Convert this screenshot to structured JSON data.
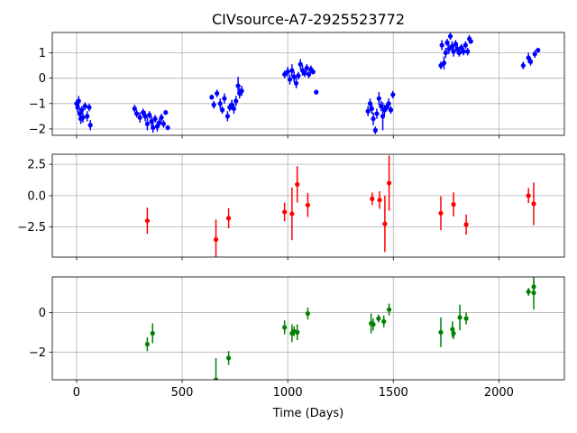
{
  "title": "CIVsource-A7-2925523772",
  "xlabel": "Time (Days)",
  "chart_data": [
    {
      "type": "scatter",
      "panel": "top",
      "color": "#0000ff",
      "title": "CIVsource-A7-2925523772",
      "xlim": [
        -115,
        2310
      ],
      "ylim": [
        -2.25,
        1.8
      ],
      "x_ticks": [
        0,
        500,
        1000,
        1500,
        2000
      ],
      "y_ticks": [
        -2,
        -1,
        0,
        1
      ],
      "grid": true,
      "points": [
        {
          "x": 0,
          "y": -1.0,
          "err": 0.15
        },
        {
          "x": 5,
          "y": -1.15,
          "err": 0.2
        },
        {
          "x": 10,
          "y": -0.9,
          "err": 0.2
        },
        {
          "x": 15,
          "y": -1.4,
          "err": 0.2
        },
        {
          "x": 20,
          "y": -1.6,
          "err": 0.2
        },
        {
          "x": 25,
          "y": -1.25,
          "err": 0.15
        },
        {
          "x": 30,
          "y": -1.55,
          "err": 0.2
        },
        {
          "x": 40,
          "y": -1.1,
          "err": 0.15
        },
        {
          "x": 50,
          "y": -1.5,
          "err": 0.2
        },
        {
          "x": 60,
          "y": -1.15,
          "err": 0.15
        },
        {
          "x": 65,
          "y": -1.85,
          "err": 0.2
        },
        {
          "x": 275,
          "y": -1.2,
          "err": 0.15
        },
        {
          "x": 285,
          "y": -1.4,
          "err": 0.15
        },
        {
          "x": 300,
          "y": -1.55,
          "err": 0.2
        },
        {
          "x": 315,
          "y": -1.35,
          "err": 0.15
        },
        {
          "x": 325,
          "y": -1.5,
          "err": 0.2
        },
        {
          "x": 335,
          "y": -1.8,
          "err": 0.25
        },
        {
          "x": 345,
          "y": -1.45,
          "err": 0.15
        },
        {
          "x": 355,
          "y": -1.7,
          "err": 0.2
        },
        {
          "x": 362,
          "y": -1.95,
          "err": 0.2
        },
        {
          "x": 372,
          "y": -1.6,
          "err": 0.15
        },
        {
          "x": 382,
          "y": -1.9,
          "err": 0.2
        },
        {
          "x": 392,
          "y": -1.75,
          "err": 0.15
        },
        {
          "x": 402,
          "y": -1.55,
          "err": 0.15
        },
        {
          "x": 412,
          "y": -1.8,
          "err": 0.15
        },
        {
          "x": 422,
          "y": -1.35,
          "err": 0.1
        },
        {
          "x": 432,
          "y": -1.95,
          "err": 0.1
        },
        {
          "x": 640,
          "y": -0.75,
          "err": 0.1
        },
        {
          "x": 650,
          "y": -1.05,
          "err": 0.15
        },
        {
          "x": 665,
          "y": -0.6,
          "err": 0.15
        },
        {
          "x": 680,
          "y": -1.0,
          "err": 0.2
        },
        {
          "x": 690,
          "y": -1.25,
          "err": 0.15
        },
        {
          "x": 700,
          "y": -0.8,
          "err": 0.2
        },
        {
          "x": 715,
          "y": -1.5,
          "err": 0.2
        },
        {
          "x": 725,
          "y": -1.15,
          "err": 0.15
        },
        {
          "x": 735,
          "y": -1.05,
          "err": 0.2
        },
        {
          "x": 745,
          "y": -1.2,
          "err": 0.2
        },
        {
          "x": 755,
          "y": -0.9,
          "err": 0.2
        },
        {
          "x": 765,
          "y": -0.3,
          "err": 0.35
        },
        {
          "x": 772,
          "y": -0.6,
          "err": 0.2
        },
        {
          "x": 782,
          "y": -0.5,
          "err": 0.2
        },
        {
          "x": 985,
          "y": 0.15,
          "err": 0.15
        },
        {
          "x": 1000,
          "y": 0.25,
          "err": 0.2
        },
        {
          "x": 1010,
          "y": -0.05,
          "err": 0.2
        },
        {
          "x": 1020,
          "y": 0.3,
          "err": 0.25
        },
        {
          "x": 1030,
          "y": 0.05,
          "err": 0.2
        },
        {
          "x": 1040,
          "y": -0.2,
          "err": 0.2
        },
        {
          "x": 1050,
          "y": 0.1,
          "err": 0.15
        },
        {
          "x": 1060,
          "y": 0.55,
          "err": 0.2
        },
        {
          "x": 1070,
          "y": 0.3,
          "err": 0.2
        },
        {
          "x": 1080,
          "y": 0.2,
          "err": 0.15
        },
        {
          "x": 1090,
          "y": 0.4,
          "err": 0.15
        },
        {
          "x": 1100,
          "y": 0.15,
          "err": 0.15
        },
        {
          "x": 1110,
          "y": 0.35,
          "err": 0.15
        },
        {
          "x": 1120,
          "y": 0.25,
          "err": 0.1
        },
        {
          "x": 1135,
          "y": -0.55,
          "err": 0.1
        },
        {
          "x": 1380,
          "y": -1.3,
          "err": 0.2
        },
        {
          "x": 1390,
          "y": -1.0,
          "err": 0.2
        },
        {
          "x": 1398,
          "y": -1.2,
          "err": 0.2
        },
        {
          "x": 1405,
          "y": -1.6,
          "err": 0.25
        },
        {
          "x": 1415,
          "y": -2.05,
          "err": 0.15
        },
        {
          "x": 1422,
          "y": -1.4,
          "err": 0.2
        },
        {
          "x": 1432,
          "y": -0.8,
          "err": 0.25
        },
        {
          "x": 1442,
          "y": -1.1,
          "err": 0.2
        },
        {
          "x": 1450,
          "y": -1.5,
          "err": 0.55
        },
        {
          "x": 1458,
          "y": -1.25,
          "err": 0.2
        },
        {
          "x": 1468,
          "y": -1.15,
          "err": 0.15
        },
        {
          "x": 1478,
          "y": -1.0,
          "err": 0.2
        },
        {
          "x": 1488,
          "y": -1.25,
          "err": 0.15
        },
        {
          "x": 1498,
          "y": -0.65,
          "err": 0.15
        },
        {
          "x": 1725,
          "y": 0.5,
          "err": 0.15
        },
        {
          "x": 1730,
          "y": 1.3,
          "err": 0.2
        },
        {
          "x": 1740,
          "y": 0.6,
          "err": 0.25
        },
        {
          "x": 1748,
          "y": 1.0,
          "err": 0.2
        },
        {
          "x": 1755,
          "y": 1.4,
          "err": 0.15
        },
        {
          "x": 1763,
          "y": 1.15,
          "err": 0.2
        },
        {
          "x": 1770,
          "y": 1.65,
          "err": 0.15
        },
        {
          "x": 1778,
          "y": 1.25,
          "err": 0.2
        },
        {
          "x": 1785,
          "y": 1.05,
          "err": 0.2
        },
        {
          "x": 1795,
          "y": 1.35,
          "err": 0.15
        },
        {
          "x": 1803,
          "y": 1.15,
          "err": 0.2
        },
        {
          "x": 1812,
          "y": 1.0,
          "err": 0.15
        },
        {
          "x": 1822,
          "y": 1.2,
          "err": 0.15
        },
        {
          "x": 1832,
          "y": 1.05,
          "err": 0.15
        },
        {
          "x": 1842,
          "y": 1.3,
          "err": 0.15
        },
        {
          "x": 1852,
          "y": 1.05,
          "err": 0.15
        },
        {
          "x": 1860,
          "y": 1.55,
          "err": 0.15
        },
        {
          "x": 1867,
          "y": 1.45,
          "err": 0.1
        },
        {
          "x": 2115,
          "y": 0.5,
          "err": 0.15
        },
        {
          "x": 2140,
          "y": 0.8,
          "err": 0.2
        },
        {
          "x": 2150,
          "y": 0.65,
          "err": 0.15
        },
        {
          "x": 2170,
          "y": 0.95,
          "err": 0.15
        },
        {
          "x": 2185,
          "y": 1.1,
          "err": 0.1
        }
      ]
    },
    {
      "type": "scatter",
      "panel": "middle",
      "color": "#ff0000",
      "xlim": [
        -115,
        2310
      ],
      "ylim": [
        -4.9,
        3.3
      ],
      "x_ticks": [
        0,
        500,
        1000,
        1500,
        2000
      ],
      "y_ticks": [
        -2.5,
        0.0,
        2.5
      ],
      "y_tick_labels": [
        "−2.5",
        "0.0",
        "2.5"
      ],
      "grid": true,
      "points": [
        {
          "x": 335,
          "y": -2.0,
          "err": 1.05
        },
        {
          "x": 660,
          "y": -3.5,
          "err": 1.6
        },
        {
          "x": 720,
          "y": -1.8,
          "err": 0.8
        },
        {
          "x": 985,
          "y": -1.3,
          "err": 0.75
        },
        {
          "x": 1020,
          "y": -1.45,
          "err": 2.1
        },
        {
          "x": 1045,
          "y": 0.9,
          "err": 1.45
        },
        {
          "x": 1095,
          "y": -0.75,
          "err": 0.95
        },
        {
          "x": 1400,
          "y": -0.25,
          "err": 0.5
        },
        {
          "x": 1435,
          "y": -0.35,
          "err": 0.7
        },
        {
          "x": 1460,
          "y": -2.25,
          "err": 2.25
        },
        {
          "x": 1480,
          "y": 1.0,
          "err": 2.2
        },
        {
          "x": 1725,
          "y": -1.4,
          "err": 1.35
        },
        {
          "x": 1785,
          "y": -0.7,
          "err": 0.95
        },
        {
          "x": 1845,
          "y": -2.3,
          "err": 0.8
        },
        {
          "x": 2140,
          "y": 0.0,
          "err": 0.6
        },
        {
          "x": 2165,
          "y": -0.65,
          "err": 1.7
        }
      ]
    },
    {
      "type": "scatter",
      "panel": "bottom",
      "color": "#008000",
      "xlim": [
        -115,
        2310
      ],
      "ylim": [
        -3.4,
        1.8
      ],
      "x_ticks": [
        0,
        500,
        1000,
        1500,
        2000
      ],
      "x_tick_labels": [
        "0",
        "500",
        "1000",
        "1500",
        "2000"
      ],
      "y_ticks": [
        -2,
        0
      ],
      "y_tick_labels": [
        "−2",
        "0"
      ],
      "grid": true,
      "points": [
        {
          "x": 335,
          "y": -1.6,
          "err": 0.35
        },
        {
          "x": 360,
          "y": -1.05,
          "err": 0.5
        },
        {
          "x": 660,
          "y": -3.4,
          "err": 1.1
        },
        {
          "x": 720,
          "y": -2.3,
          "err": 0.35
        },
        {
          "x": 985,
          "y": -0.75,
          "err": 0.35
        },
        {
          "x": 1020,
          "y": -1.05,
          "err": 0.45
        },
        {
          "x": 1030,
          "y": -0.95,
          "err": 0.25
        },
        {
          "x": 1045,
          "y": -1.0,
          "err": 0.4
        },
        {
          "x": 1095,
          "y": -0.05,
          "err": 0.3
        },
        {
          "x": 1395,
          "y": -0.55,
          "err": 0.5
        },
        {
          "x": 1405,
          "y": -0.6,
          "err": 0.3
        },
        {
          "x": 1430,
          "y": -0.3,
          "err": 0.2
        },
        {
          "x": 1455,
          "y": -0.45,
          "err": 0.3
        },
        {
          "x": 1480,
          "y": 0.15,
          "err": 0.3
        },
        {
          "x": 1725,
          "y": -1.0,
          "err": 0.75
        },
        {
          "x": 1780,
          "y": -0.85,
          "err": 0.4
        },
        {
          "x": 1785,
          "y": -1.05,
          "err": 0.3
        },
        {
          "x": 1815,
          "y": -0.25,
          "err": 0.65
        },
        {
          "x": 1845,
          "y": -0.3,
          "err": 0.3
        },
        {
          "x": 2140,
          "y": 1.05,
          "err": 0.2
        },
        {
          "x": 2165,
          "y": 1.0,
          "err": 0.85
        },
        {
          "x": 2165,
          "y": 1.3,
          "err": 0.3
        }
      ]
    }
  ]
}
